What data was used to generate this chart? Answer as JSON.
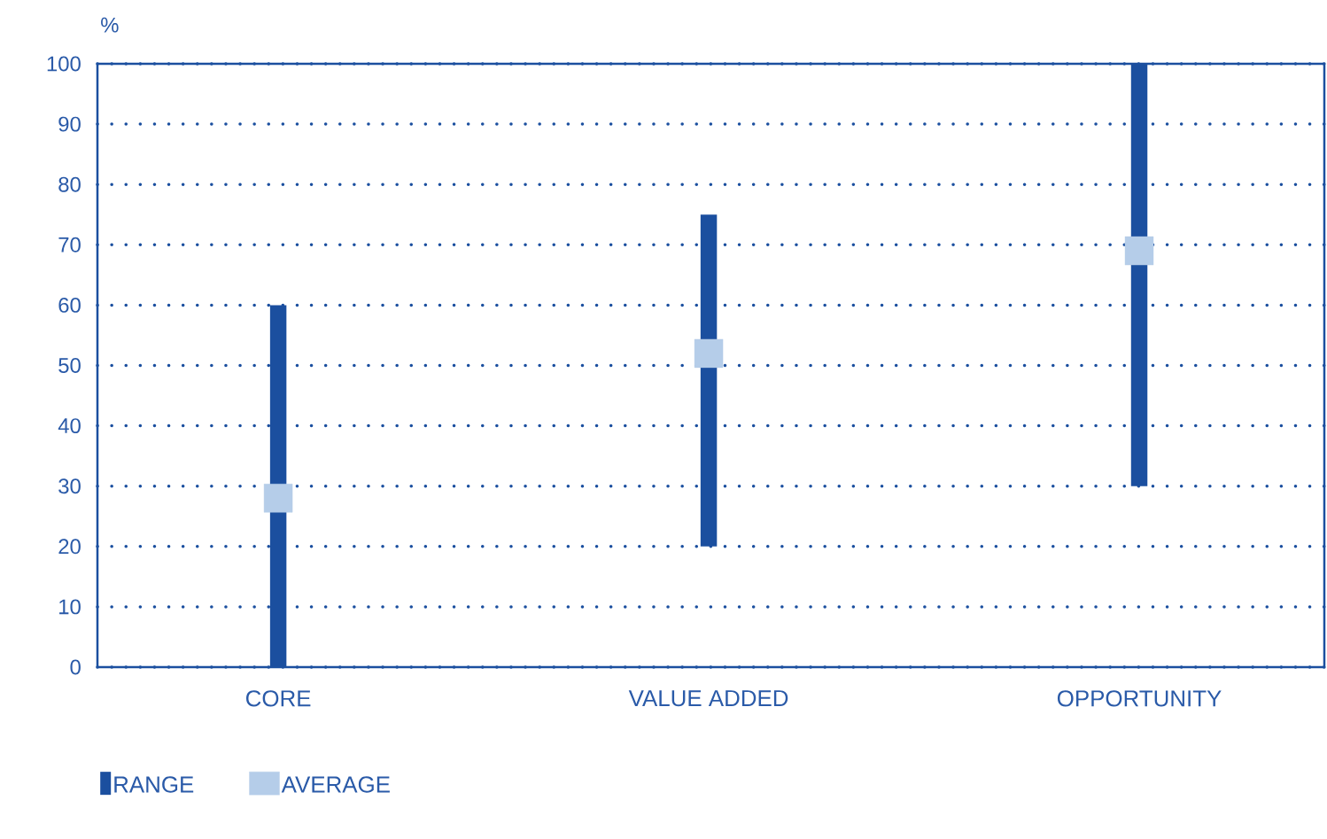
{
  "chart_data": {
    "type": "bar",
    "ylabel": "%",
    "categories": [
      "CORE",
      "VALUE ADDED",
      "OPPORTUNITY"
    ],
    "series": [
      {
        "name": "RANGE",
        "type": "bar",
        "color": "#1b4f9f",
        "base": [
          0,
          20,
          30
        ],
        "values": [
          60,
          55,
          70
        ]
      },
      {
        "name": "AVERAGE",
        "type": "scatter",
        "color": "#b5cde9",
        "marker": "square",
        "x": [
          "CORE",
          "VALUE ADDED",
          "OPPORTUNITY"
        ],
        "values": [
          28,
          52,
          69
        ]
      }
    ],
    "ylim": [
      0,
      100
    ],
    "yticks": [
      0,
      10,
      20,
      30,
      40,
      50,
      60,
      70,
      80,
      90,
      100
    ],
    "grid": "y",
    "legend": "bottom"
  }
}
